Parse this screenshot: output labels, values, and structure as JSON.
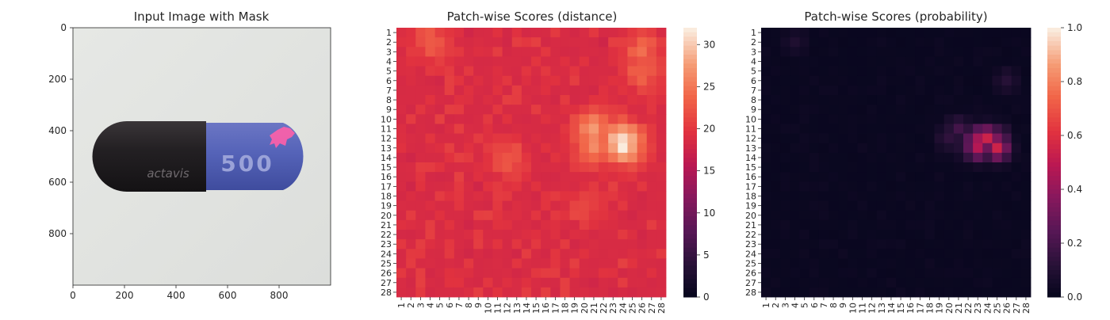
{
  "chart_data": [
    {
      "type": "image",
      "title": "Input Image with Mask",
      "xlim": [
        0,
        1000
      ],
      "ylim": [
        1000,
        0
      ],
      "xticks": [
        0,
        200,
        400,
        600,
        800
      ],
      "yticks": [
        0,
        200,
        400,
        600,
        800
      ],
      "image_text": [
        "500",
        "actavis"
      ],
      "colors": {
        "background": "#e2e4e1",
        "capsule_dark": "#232023",
        "capsule_blue": "#5563b8",
        "mask": "#ff5fa8"
      }
    },
    {
      "type": "heatmap",
      "title": "Patch-wise Scores (distance)",
      "rows": [
        "1",
        "2",
        "3",
        "4",
        "5",
        "6",
        "7",
        "8",
        "9",
        "10",
        "11",
        "12",
        "13",
        "14",
        "15",
        "16",
        "17",
        "18",
        "19",
        "20",
        "21",
        "22",
        "23",
        "24",
        "25",
        "26",
        "27",
        "28"
      ],
      "cols": [
        "1",
        "2",
        "3",
        "4",
        "5",
        "6",
        "7",
        "8",
        "9",
        "10",
        "11",
        "12",
        "13",
        "14",
        "15",
        "16",
        "17",
        "18",
        "19",
        "20",
        "21",
        "22",
        "23",
        "24",
        "25",
        "26",
        "27",
        "28"
      ],
      "colormap": "rocket",
      "vmin": 0,
      "vmax": 32,
      "colorbar_ticks": [
        0,
        5,
        10,
        15,
        20,
        25,
        30
      ],
      "baseline": 18,
      "hotspots": [
        {
          "row": 12.5,
          "col": 24,
          "value": 32
        },
        {
          "row": 11,
          "col": 21,
          "value": 27
        },
        {
          "row": 13,
          "col": 21,
          "value": 26
        },
        {
          "row": 3,
          "col": 26,
          "value": 24
        },
        {
          "row": 5,
          "col": 26,
          "value": 24
        },
        {
          "row": 2,
          "col": 4,
          "value": 23
        },
        {
          "row": 14,
          "col": 12,
          "value": 23
        },
        {
          "row": 19,
          "col": 20,
          "value": 22
        }
      ]
    },
    {
      "type": "heatmap",
      "title": "Patch-wise Scores (probability)",
      "rows": [
        "1",
        "2",
        "3",
        "4",
        "5",
        "6",
        "7",
        "8",
        "9",
        "10",
        "11",
        "12",
        "13",
        "14",
        "15",
        "16",
        "17",
        "18",
        "19",
        "20",
        "21",
        "22",
        "23",
        "24",
        "25",
        "26",
        "27",
        "28"
      ],
      "cols": [
        "1",
        "2",
        "3",
        "4",
        "5",
        "6",
        "7",
        "8",
        "9",
        "10",
        "11",
        "12",
        "13",
        "14",
        "15",
        "16",
        "17",
        "18",
        "19",
        "20",
        "21",
        "22",
        "23",
        "24",
        "25",
        "26",
        "27",
        "28"
      ],
      "colormap": "rocket",
      "vmin": 0.0,
      "vmax": 1.0,
      "colorbar_ticks": [
        "0.0",
        "0.2",
        "0.4",
        "0.6",
        "0.8",
        "1.0"
      ],
      "baseline": 0.02,
      "hotspots": [
        {
          "row": 12,
          "col": 24,
          "value": 0.55
        },
        {
          "row": 13,
          "col": 25,
          "value": 0.55
        },
        {
          "row": 12,
          "col": 23,
          "value": 0.45
        },
        {
          "row": 13,
          "col": 23,
          "value": 0.48
        },
        {
          "row": 12,
          "col": 25,
          "value": 0.35
        },
        {
          "row": 11,
          "col": 21,
          "value": 0.2
        },
        {
          "row": 12,
          "col": 20,
          "value": 0.15
        },
        {
          "row": 13,
          "col": 22,
          "value": 0.18
        },
        {
          "row": 6,
          "col": 26,
          "value": 0.12
        },
        {
          "row": 2,
          "col": 4,
          "value": 0.1
        }
      ]
    }
  ]
}
